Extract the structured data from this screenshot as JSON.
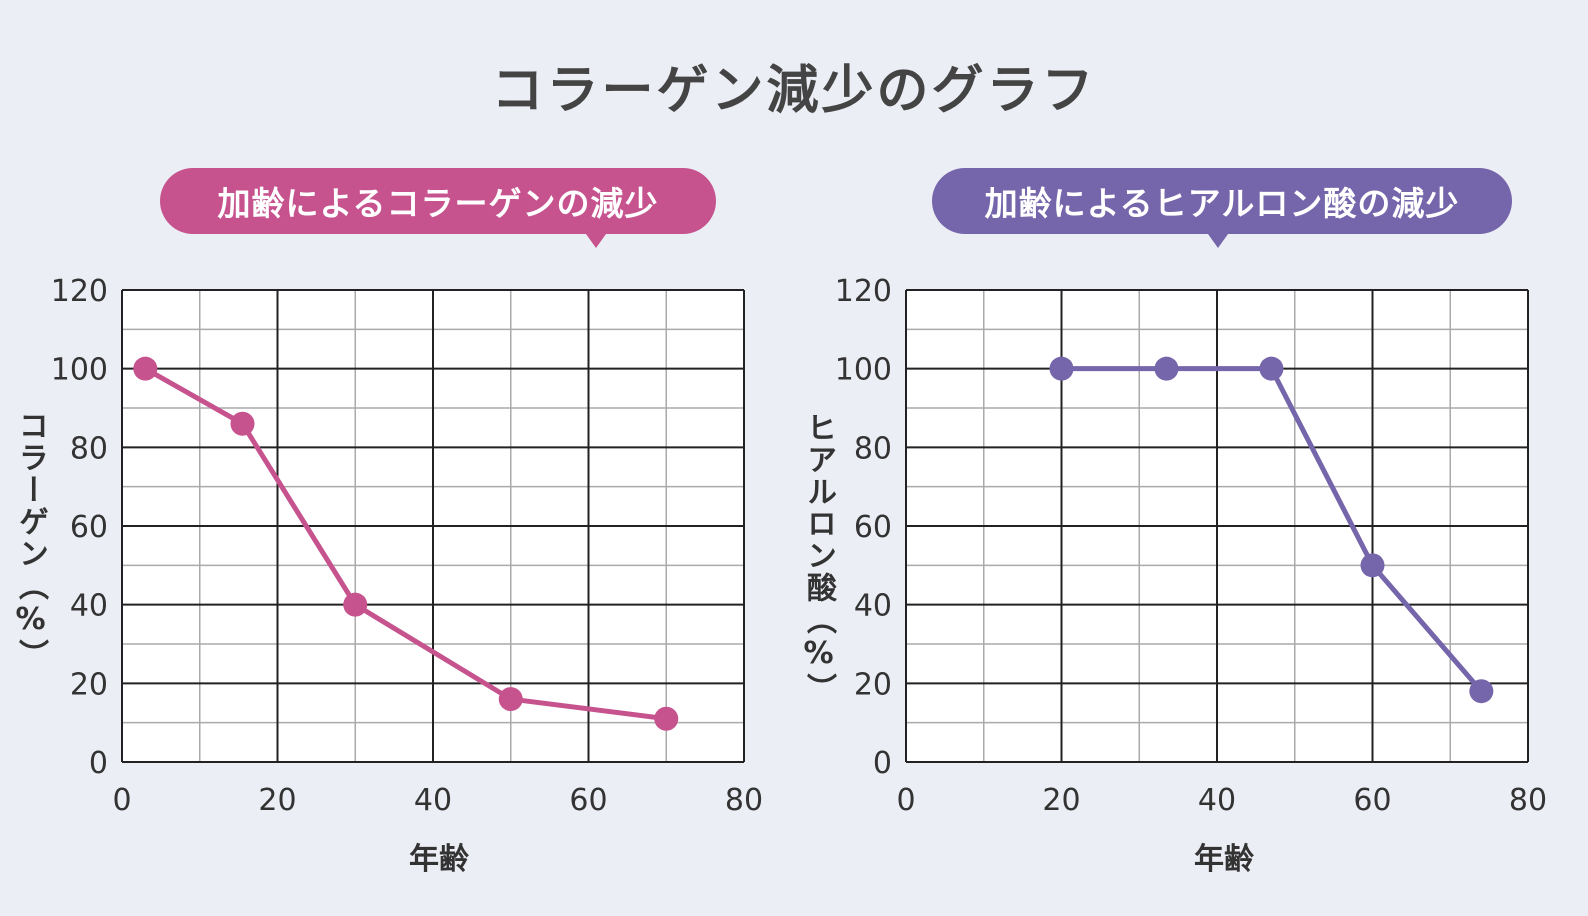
{
  "title": "コラーゲン減少のグラフ",
  "colors": {
    "collagen": "#c6538e",
    "hyaluronic": "#7565aa",
    "grid_major": "#222222",
    "grid_minor": "#aaaaaa",
    "plot_bg": "#ffffff"
  },
  "chart_data": [
    {
      "type": "line",
      "title": "加齢によるコラーゲンの減少",
      "xlabel": "年齢",
      "ylabel": "コラーゲン（%）",
      "xlim": [
        0,
        80
      ],
      "ylim": [
        0,
        120
      ],
      "xticks": [
        0,
        20,
        40,
        60,
        80
      ],
      "yticks": [
        0,
        20,
        40,
        60,
        80,
        100,
        120
      ],
      "grid": true,
      "x": [
        3,
        15.5,
        30,
        50,
        70
      ],
      "y": [
        100,
        86,
        40,
        16,
        11
      ]
    },
    {
      "type": "line",
      "title": "加齢によるヒアルロン酸の減少",
      "xlabel": "年齢",
      "ylabel": "ヒアルロン酸（%）",
      "xlim": [
        0,
        80
      ],
      "ylim": [
        0,
        120
      ],
      "xticks": [
        0,
        20,
        40,
        60,
        80
      ],
      "yticks": [
        0,
        20,
        40,
        60,
        80,
        100,
        120
      ],
      "grid": true,
      "x": [
        20,
        33.5,
        47,
        60,
        74
      ],
      "y": [
        100,
        100,
        100,
        50,
        18
      ]
    }
  ]
}
